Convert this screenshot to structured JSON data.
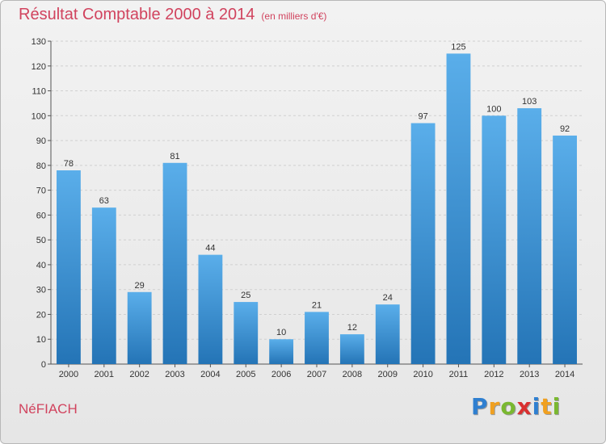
{
  "title": "Résultat Comptable 2000 à 2014",
  "subtitle": "(en milliers d'€)",
  "commune": "NéFIACH",
  "logo": [
    "P",
    "r",
    "o",
    "x",
    "i",
    "t",
    "i"
  ],
  "colors": {
    "title": "#d1435e",
    "bar_top": "#5aaeea",
    "bar_bottom": "#2474b6",
    "grid": "#d0d0d0",
    "logo": [
      "#2f7fd0",
      "#f0a020",
      "#7ab830",
      "#d93030",
      "#2f7fd0",
      "#f0a020",
      "#7ab830"
    ]
  },
  "chart_data": {
    "type": "bar",
    "categories": [
      "2000",
      "2001",
      "2002",
      "2003",
      "2004",
      "2005",
      "2006",
      "2007",
      "2008",
      "2009",
      "2010",
      "2011",
      "2012",
      "2013",
      "2014"
    ],
    "values": [
      78,
      63,
      29,
      81,
      44,
      25,
      10,
      21,
      12,
      24,
      97,
      125,
      100,
      103,
      92
    ],
    "data_labels": [
      "78",
      "63",
      "29",
      "81",
      "44",
      "25",
      "10",
      "21",
      "12",
      "24",
      "97",
      "125",
      "100",
      "103",
      "92"
    ],
    "y_ticks": [
      "0",
      "10",
      "20",
      "30",
      "40",
      "50",
      "60",
      "70",
      "80",
      "90",
      "100",
      "110",
      "120",
      "130"
    ],
    "ylim": [
      0,
      130
    ],
    "grid": true,
    "xlabel": "",
    "ylabel": ""
  }
}
